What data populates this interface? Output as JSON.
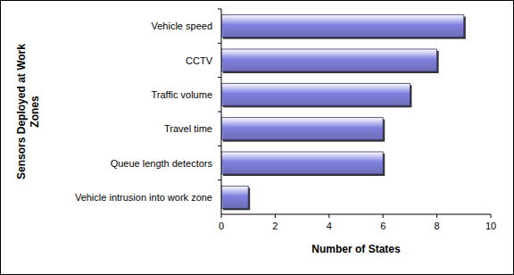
{
  "chart_data": {
    "type": "bar",
    "orientation": "horizontal",
    "x_label": "Number of States",
    "y_label": "Sensors Deployed at Work Zones",
    "categories": [
      "Vehicle speed",
      "CCTV",
      "Traffic volume",
      "Travel time",
      "Queue length detectors",
      "Vehicle intrusion into work zone"
    ],
    "values": [
      9,
      8,
      7,
      6,
      6,
      1
    ],
    "color": "#8080e0",
    "xlim": [
      0,
      10
    ],
    "xticks": [
      0,
      2,
      4,
      6,
      8,
      10
    ],
    "grid": false
  }
}
